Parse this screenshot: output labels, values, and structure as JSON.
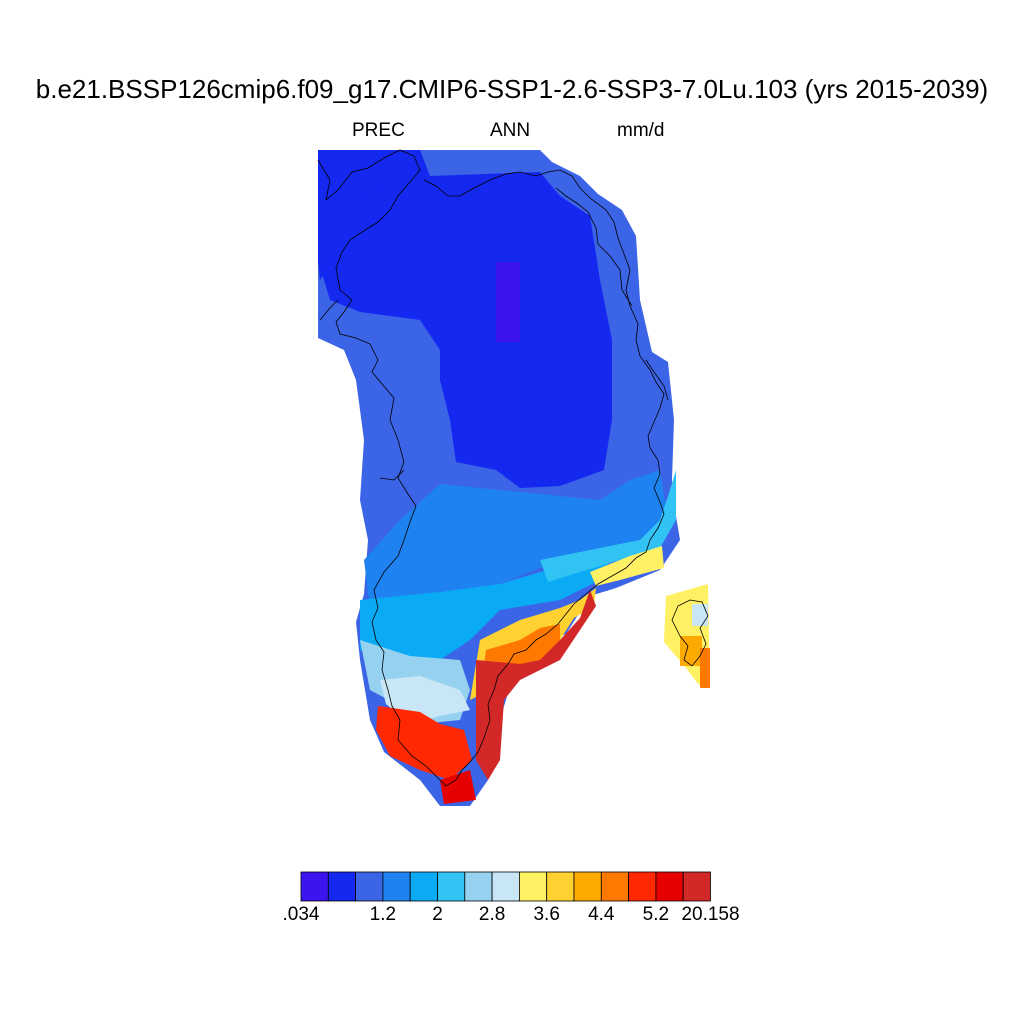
{
  "title": "b.e21.BSSP126cmip6.f09_g17.CMIP6-SSP1-2.6-SSP3-7.0Lu.103 (yrs 2015-2039)",
  "variable": "PREC",
  "season": "ANN",
  "units": "mm/d",
  "colorbar": {
    "colors": [
      "#3c14f0",
      "#1428f0",
      "#3c64e6",
      "#1e82f0",
      "#0aaaf5",
      "#32c3f5",
      "#96d2f0",
      "#c8e6f5",
      "#fff064",
      "#ffd232",
      "#ffaa00",
      "#ff7800",
      "#ff2800",
      "#e60000",
      "#d22828"
    ],
    "labels": [
      ".034",
      "1.2",
      "2",
      "2.8",
      "3.6",
      "4.4",
      "5.2",
      "20.158"
    ]
  }
}
